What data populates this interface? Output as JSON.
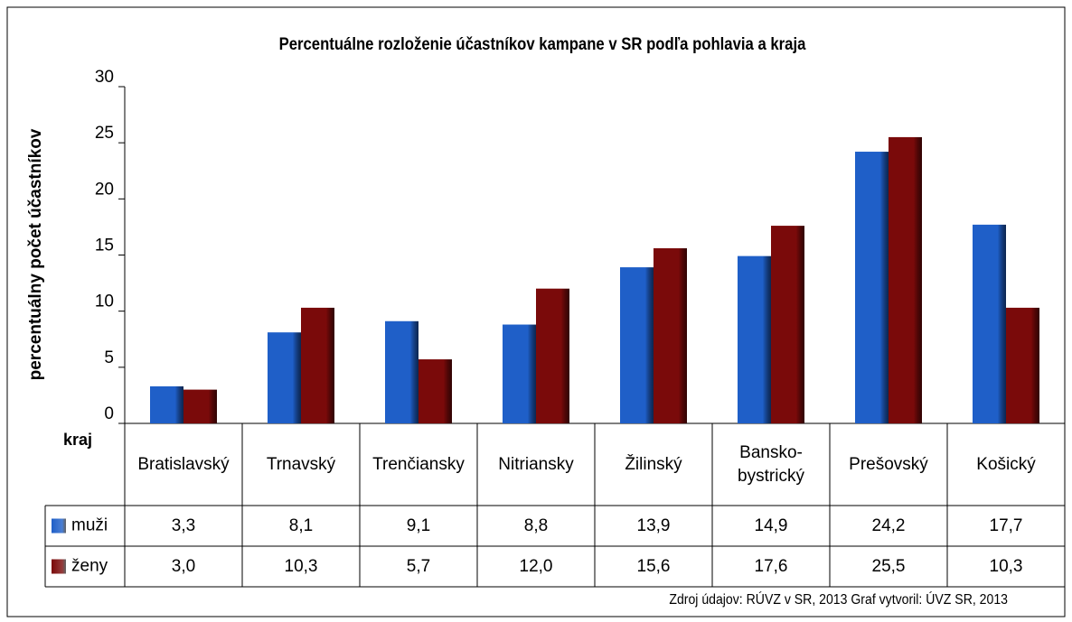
{
  "chart_data": {
    "type": "bar",
    "title": "Percentuálne rozloženie účastníkov kampane  v SR podľa pohlavia a kraja",
    "ylabel": "percentuálny počet účastníkov",
    "xlabel": "kraj",
    "categories": [
      "Bratislavský",
      "Trnavský",
      "Trenčiansky",
      "Nitriansky",
      "Žilinský",
      "Bansko-bystrický",
      "Prešovský",
      "Košický"
    ],
    "series": [
      {
        "name": "muži",
        "color": "#1f5fc8",
        "values": [
          3.3,
          8.1,
          9.1,
          8.8,
          13.9,
          14.9,
          24.2,
          17.7
        ],
        "value_labels": [
          "3,3",
          "8,1",
          "9,1",
          "8,8",
          "13,9",
          "14,9",
          "24,2",
          "17,7"
        ]
      },
      {
        "name": "ženy",
        "color": "#7a0a0a",
        "values": [
          3.0,
          10.3,
          5.7,
          12.0,
          15.6,
          17.6,
          25.5,
          10.3
        ],
        "value_labels": [
          "3,0",
          "10,3",
          "5,7",
          "12,0",
          "15,6",
          "17,6",
          "25,5",
          "10,3"
        ]
      }
    ],
    "ylim": [
      0,
      30
    ],
    "yticks": [
      0,
      5,
      10,
      15,
      20,
      25,
      30
    ],
    "grid": false,
    "source": "Zdroj  údajov: RÚVZ v SR, 2013   Graf vytvoril: ÚVZ SR, 2013"
  }
}
